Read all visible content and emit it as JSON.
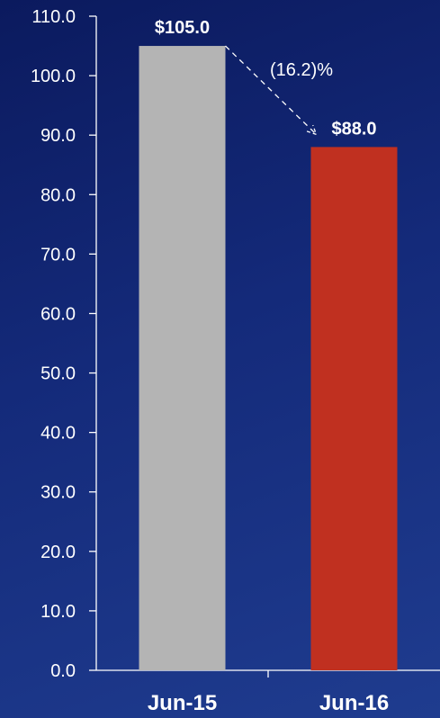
{
  "chart_data": {
    "type": "bar",
    "categories": [
      "Jun-15",
      "Jun-16"
    ],
    "values": [
      105.0,
      88.0
    ],
    "data_labels": [
      "$105.0",
      "$88.0"
    ],
    "bar_colors": [
      "#b4b4b4",
      "#c03020"
    ],
    "ylim": [
      0,
      110
    ],
    "yticks": [
      "0.0",
      "10.0",
      "20.0",
      "30.0",
      "40.0",
      "50.0",
      "60.0",
      "70.0",
      "80.0",
      "90.0",
      "100.0",
      "110.0"
    ],
    "annotation": "(16.2)%",
    "grid": false,
    "title": "",
    "xlabel": "",
    "ylabel": ""
  }
}
